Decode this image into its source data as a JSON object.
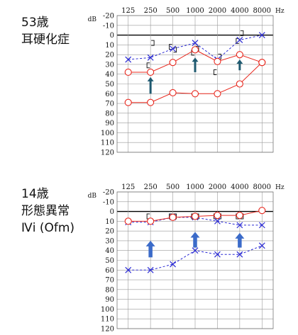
{
  "panels": [
    {
      "caption": [
        "53歳",
        "耳硬化症"
      ],
      "chart_data": {
        "type": "line",
        "title": "",
        "xlabel": "Hz",
        "ylabel": "dB",
        "x": [
          125,
          250,
          500,
          1000,
          2000,
          4000,
          8000
        ],
        "x_tick_labels": [
          "125",
          "250",
          "500",
          "1000",
          "2000",
          "4000",
          "8000"
        ],
        "x_unit": "Hz",
        "y_unit": "dB",
        "ylim": [
          -20,
          120
        ],
        "y_ticks": [
          -20,
          -10,
          0,
          10,
          20,
          30,
          40,
          50,
          60,
          70,
          80,
          90,
          100,
          110,
          120
        ],
        "y_inverted": true,
        "series": [
          {
            "marker": "x",
            "style": "dashed",
            "color": "#2a2ad4",
            "values": [
              25,
              23,
              14,
              8,
              25,
              5,
              0
            ]
          },
          {
            "marker": "o",
            "style": "solid",
            "color": "#e8281e",
            "values": [
              38,
              38,
              28,
              15,
              27,
              20,
              28
            ]
          },
          {
            "marker": "o",
            "style": "solid",
            "color": "#e8281e",
            "values": [
              69,
              69,
              59,
              60,
              60,
              50,
              28
            ]
          }
        ],
        "bone_left": [
          {
            "x": 250,
            "y": 31
          },
          {
            "x": 500,
            "y": 12
          },
          {
            "x": 1000,
            "y": 18
          },
          {
            "x": 2000,
            "y": 38
          },
          {
            "x": 4000,
            "y": 6
          }
        ],
        "bone_right": [
          {
            "x": 250,
            "y": 8
          },
          {
            "x": 500,
            "y": 15
          },
          {
            "x": 1000,
            "y": 14
          },
          {
            "x": 2000,
            "y": 22
          },
          {
            "x": 4000,
            "y": -2
          }
        ],
        "arrows": [
          {
            "x": 250,
            "from": 60,
            "to": 43
          },
          {
            "x": 1000,
            "from": 38,
            "to": 23
          },
          {
            "x": 4000,
            "from": 36,
            "to": 25
          }
        ],
        "arrow_color": "#1f5a70"
      }
    },
    {
      "caption": [
        "14歳",
        "形態異常",
        "Ⅳi (Ofm)"
      ],
      "chart_data": {
        "type": "line",
        "title": "",
        "xlabel": "Hz",
        "ylabel": "dB",
        "x": [
          125,
          250,
          500,
          1000,
          2000,
          4000,
          8000
        ],
        "x_tick_labels": [
          "125",
          "250",
          "500",
          "1000",
          "2000",
          "4000",
          "8000"
        ],
        "x_unit": "Hz",
        "y_unit": "dB",
        "ylim": [
          -20,
          120
        ],
        "y_ticks": [
          -20,
          -10,
          0,
          10,
          20,
          30,
          40,
          50,
          60,
          70,
          80,
          90,
          100,
          110,
          120
        ],
        "y_inverted": true,
        "series": [
          {
            "marker": "x",
            "style": "dashed",
            "color": "#2a2ad4",
            "values": [
              11,
              11,
              6,
              6,
              10,
              14,
              14
            ]
          },
          {
            "marker": "o",
            "style": "solid",
            "color": "#e8281e",
            "values": [
              10,
              10,
              6,
              5,
              4,
              4,
              -1
            ]
          },
          {
            "marker": "x",
            "style": "dashed",
            "color": "#2a2ad4",
            "values": [
              60,
              60,
              54,
              40,
              44,
              44,
              35
            ]
          }
        ],
        "bone_left": [
          {
            "x": 250,
            "y": 5
          },
          {
            "x": 500,
            "y": 5
          },
          {
            "x": 1000,
            "y": 5
          },
          {
            "x": 2000,
            "y": 5
          },
          {
            "x": 4000,
            "y": 5
          }
        ],
        "bone_right": [
          {
            "x": 500,
            "y": 5
          },
          {
            "x": 1000,
            "y": 5
          },
          {
            "x": 2000,
            "y": 5
          },
          {
            "x": 4000,
            "y": 5
          }
        ],
        "arrows": [
          {
            "x": 250,
            "from": 47,
            "to": 30
          },
          {
            "x": 1000,
            "from": 37,
            "to": 21
          },
          {
            "x": 4000,
            "from": 37,
            "to": 22
          }
        ],
        "arrow_color": "#3b6bc9"
      }
    }
  ]
}
